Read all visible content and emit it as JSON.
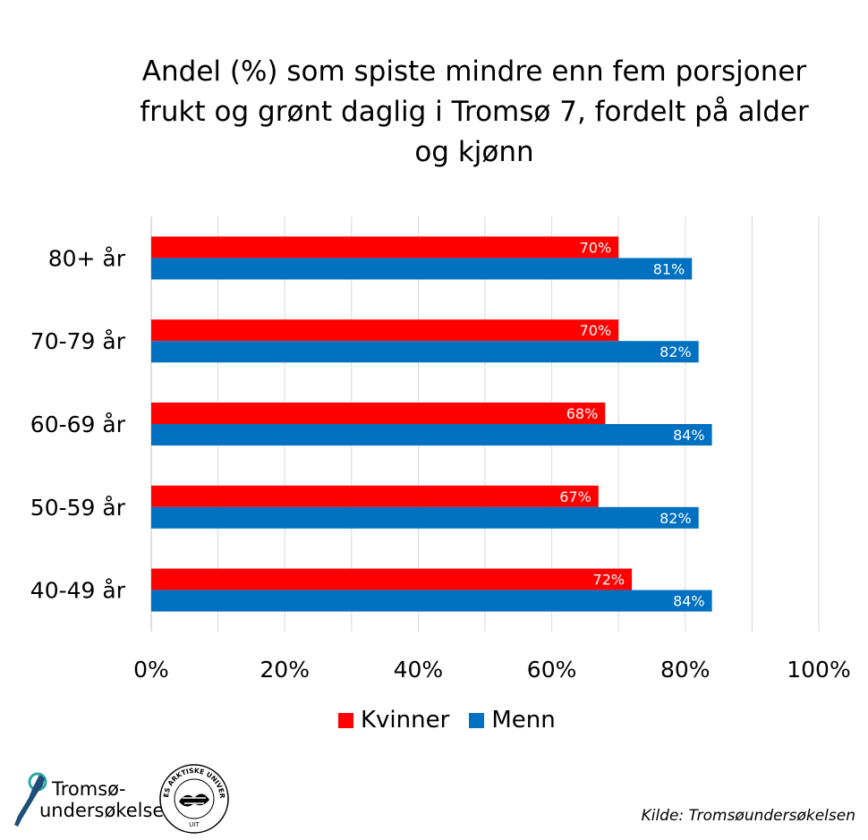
{
  "chart_data": {
    "type": "bar",
    "orientation": "horizontal",
    "title": "Andel (%) som spiste mindre enn fem porsjoner frukt og grønt daglig i Tromsø 7, fordelt på alder og kjønn",
    "categories": [
      "80+ år",
      "70-79 år",
      "60-69 år",
      "50-59 år",
      "40-49 år"
    ],
    "series": [
      {
        "name": "Kvinner",
        "color": "#ff0000",
        "values": [
          70,
          70,
          68,
          67,
          72
        ],
        "labels": [
          "70%",
          "70%",
          "68%",
          "67%",
          "72%"
        ]
      },
      {
        "name": "Menn",
        "color": "#0070c0",
        "values": [
          81,
          82,
          84,
          82,
          84
        ],
        "labels": [
          "81%",
          "82%",
          "84%",
          "82%",
          "84%"
        ]
      }
    ],
    "xlim": [
      0,
      100
    ],
    "xticks": [
      "0%",
      "20%",
      "40%",
      "60%",
      "80%",
      "100%"
    ],
    "grid": true,
    "legend": "bottom"
  },
  "source": "Kilde: Tromsøundersøkelsen",
  "logos": {
    "tromso_line1": "Tromsø-",
    "tromso_line2": "undersøkelsen",
    "uit_ring_top": "NORGES ARKTISKE UNIVERSITET",
    "uit_ring_bottom": "UIT"
  }
}
